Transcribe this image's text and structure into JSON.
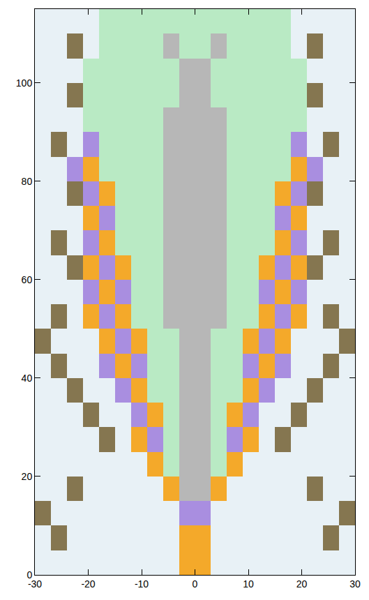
{
  "chart_data": {
    "type": "heatmap",
    "x": [
      -28.5,
      -25.5,
      -22.5,
      -19.5,
      -16.5,
      -13.5,
      -10.5,
      -7.5,
      -4.5,
      -1.5,
      1.5,
      4.5,
      7.5,
      10.5,
      13.5,
      16.5,
      19.5,
      22.5,
      25.5,
      28.5
    ],
    "y": [
      2.5,
      7.5,
      12.5,
      17.5,
      22.5,
      27.5,
      32.5,
      37.5,
      42.5,
      47.5,
      52.5,
      57.5,
      62.5,
      67.5,
      72.5,
      77.5,
      82.5,
      87.5,
      92.5,
      97.5,
      102.5,
      107.5,
      112.5
    ],
    "cells": [
      [
        0,
        0,
        0,
        0,
        0,
        0,
        0,
        0,
        0,
        3,
        3,
        0,
        0,
        0,
        0,
        0,
        0,
        0,
        0,
        0
      ],
      [
        0,
        5,
        0,
        0,
        0,
        0,
        0,
        0,
        0,
        3,
        3,
        0,
        0,
        0,
        0,
        0,
        0,
        0,
        5,
        0
      ],
      [
        5,
        0,
        0,
        0,
        0,
        0,
        0,
        0,
        0,
        4,
        4,
        0,
        0,
        0,
        0,
        0,
        0,
        0,
        0,
        5
      ],
      [
        0,
        0,
        5,
        0,
        0,
        0,
        0,
        0,
        3,
        2,
        2,
        3,
        0,
        0,
        0,
        0,
        0,
        5,
        0,
        0
      ],
      [
        0,
        0,
        0,
        0,
        0,
        0,
        0,
        3,
        1,
        2,
        2,
        1,
        3,
        0,
        0,
        0,
        0,
        0,
        0,
        0
      ],
      [
        0,
        0,
        0,
        0,
        5,
        0,
        3,
        4,
        1,
        2,
        2,
        1,
        4,
        3,
        0,
        5,
        0,
        0,
        0,
        0
      ],
      [
        0,
        0,
        0,
        5,
        0,
        0,
        4,
        3,
        1,
        2,
        2,
        1,
        3,
        4,
        0,
        0,
        5,
        0,
        0,
        0
      ],
      [
        0,
        0,
        5,
        0,
        0,
        4,
        3,
        1,
        1,
        2,
        2,
        1,
        1,
        3,
        4,
        0,
        0,
        5,
        0,
        0
      ],
      [
        0,
        5,
        0,
        0,
        4,
        3,
        4,
        1,
        1,
        2,
        2,
        1,
        1,
        4,
        3,
        4,
        0,
        0,
        5,
        0
      ],
      [
        5,
        0,
        0,
        0,
        3,
        4,
        3,
        1,
        1,
        2,
        2,
        1,
        1,
        3,
        4,
        3,
        0,
        0,
        0,
        5
      ],
      [
        0,
        5,
        0,
        3,
        4,
        3,
        1,
        1,
        2,
        2,
        2,
        2,
        1,
        1,
        3,
        4,
        3,
        0,
        5,
        0
      ],
      [
        0,
        0,
        0,
        4,
        3,
        4,
        1,
        1,
        2,
        2,
        2,
        2,
        1,
        1,
        4,
        3,
        4,
        0,
        0,
        0
      ],
      [
        0,
        0,
        5,
        3,
        4,
        3,
        1,
        1,
        2,
        2,
        2,
        2,
        1,
        1,
        3,
        4,
        3,
        5,
        0,
        0
      ],
      [
        0,
        5,
        0,
        4,
        3,
        1,
        1,
        1,
        2,
        2,
        2,
        2,
        1,
        1,
        1,
        3,
        4,
        0,
        5,
        0
      ],
      [
        0,
        0,
        0,
        3,
        4,
        1,
        1,
        1,
        2,
        2,
        2,
        2,
        1,
        1,
        1,
        4,
        3,
        0,
        0,
        0
      ],
      [
        0,
        0,
        5,
        4,
        3,
        1,
        1,
        1,
        2,
        2,
        2,
        2,
        1,
        1,
        1,
        3,
        4,
        5,
        0,
        0
      ],
      [
        0,
        0,
        4,
        3,
        1,
        1,
        1,
        1,
        2,
        2,
        2,
        2,
        1,
        1,
        1,
        1,
        3,
        4,
        0,
        0
      ],
      [
        0,
        5,
        0,
        4,
        1,
        1,
        1,
        1,
        2,
        2,
        2,
        2,
        1,
        1,
        1,
        1,
        4,
        0,
        5,
        0
      ],
      [
        0,
        0,
        0,
        1,
        1,
        1,
        1,
        1,
        2,
        2,
        2,
        2,
        1,
        1,
        1,
        1,
        1,
        0,
        0,
        0
      ],
      [
        0,
        0,
        5,
        1,
        1,
        1,
        1,
        1,
        1,
        2,
        2,
        1,
        1,
        1,
        1,
        1,
        1,
        5,
        0,
        0
      ],
      [
        0,
        0,
        0,
        1,
        1,
        1,
        1,
        1,
        1,
        2,
        2,
        1,
        1,
        1,
        1,
        1,
        1,
        0,
        0,
        0
      ],
      [
        0,
        0,
        5,
        0,
        1,
        1,
        1,
        1,
        2,
        1,
        1,
        2,
        1,
        1,
        1,
        1,
        0,
        5,
        0,
        0
      ],
      [
        0,
        0,
        0,
        0,
        1,
        1,
        1,
        1,
        1,
        1,
        1,
        1,
        1,
        1,
        1,
        1,
        0,
        0,
        0,
        0
      ]
    ],
    "colors": [
      "#e8f1f6",
      "#b9eac4",
      "#b7b7b7",
      "#f4a92a",
      "#a98ee0",
      "#857650"
    ],
    "xlim": [
      -30,
      30
    ],
    "xticks": [
      -30,
      -20,
      -10,
      0,
      10,
      20,
      30
    ],
    "ylim": [
      0,
      115
    ],
    "yticks": [
      0,
      20,
      40,
      60,
      80,
      100
    ],
    "grid": false
  }
}
